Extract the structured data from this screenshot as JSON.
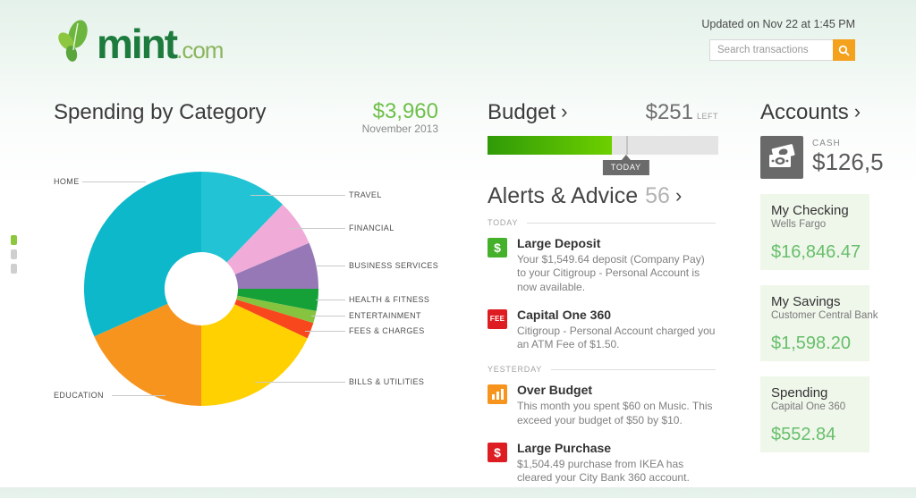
{
  "header": {
    "logo_name": "mint",
    "logo_tld": ".com",
    "updated": "Updated on Nov 22 at 1:45 PM",
    "search_placeholder": "Search transactions"
  },
  "spending": {
    "title": "Spending by Category",
    "total": "$3,960",
    "period": "November 2013"
  },
  "chart_data": {
    "type": "pie",
    "donut": true,
    "title": "Spending by Category",
    "total_label": "$3,960",
    "period": "November 2013",
    "start_angle_deg": 0,
    "direction": "clockwise",
    "values_estimated_from_arc_angles": true,
    "segments": [
      {
        "label": "TRAVEL",
        "value": 484,
        "color": "#22c3d4"
      },
      {
        "label": "FINANCIAL",
        "value": 253,
        "color": "#f0abd8"
      },
      {
        "label": "BUSINESS SERVICES",
        "value": 253,
        "color": "#9678b6"
      },
      {
        "label": "HEALTH & FITNESS",
        "value": 121,
        "color": "#16a038"
      },
      {
        "label": "ENTERTAINMENT",
        "value": 66,
        "color": "#86c440"
      },
      {
        "label": "FEES & CHARGES",
        "value": 88,
        "color": "#f9471d"
      },
      {
        "label": "BILLS & UTILITIES",
        "value": 715,
        "color": "#ffd100"
      },
      {
        "label": "EDUCATION",
        "value": 726,
        "color": "#f7941e"
      },
      {
        "label": "HOME",
        "value": 1254,
        "color": "#0db8ca"
      }
    ]
  },
  "budget": {
    "title": "Budget",
    "left_amount": "$251",
    "left_label": "LEFT",
    "progress_pct": 54,
    "today_pct": 60,
    "today_label": "TODAY",
    "fill_color_start": "#2f9a07",
    "fill_color_end": "#6ed000"
  },
  "alerts": {
    "title": "Alerts & Advice",
    "count": "56",
    "groups": [
      {
        "label": "TODAY",
        "items": [
          {
            "icon": "dollar-icon",
            "glyph": "$",
            "color": "#45b029",
            "title": "Large Deposit",
            "body": "Your $1,549.64 deposit (Company Pay) to your Citigroup - Personal Account is now available."
          },
          {
            "icon": "fee-icon",
            "glyph": "FEE",
            "color": "#dd1d21",
            "title": "Capital One 360",
            "body": "Citigroup - Personal Account charged you an ATM Fee of $1.50."
          }
        ]
      },
      {
        "label": "YESTERDAY",
        "items": [
          {
            "icon": "bar-chart-icon",
            "glyph": "",
            "color": "#f7941e",
            "title": "Over Budget",
            "body": "This month you spent $60 on Music. This exceed your budget of $50 by $10."
          },
          {
            "icon": "dollar-icon",
            "glyph": "$",
            "color": "#dd1d21",
            "title": "Large Purchase",
            "body": "$1,504.49 purchase from IKEA has cleared your City Bank 360 account."
          }
        ]
      }
    ]
  },
  "accounts": {
    "title": "Accounts",
    "cash_label": "CASH",
    "cash_value": "$126,5",
    "cards": [
      {
        "name": "My Checking",
        "institution": "Wells Fargo",
        "balance": "$16,846.47"
      },
      {
        "name": "My Savings",
        "institution": "Customer Central Bank",
        "balance": "$1,598.20"
      },
      {
        "name": "Spending",
        "institution": "Capital One 360",
        "balance": "$552.84"
      }
    ]
  }
}
